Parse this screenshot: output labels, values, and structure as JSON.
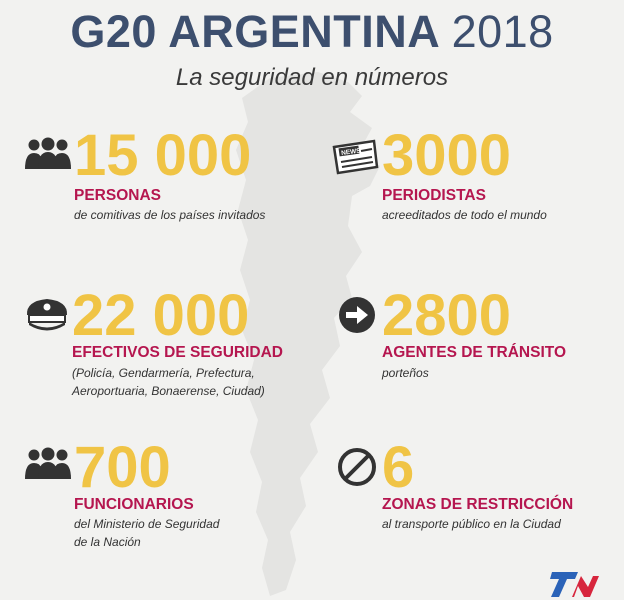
{
  "header": {
    "title_main": "G20 ARGENTINA",
    "title_year": "2018",
    "subtitle": "La seguridad en números"
  },
  "stats": [
    {
      "icon": "people-icon",
      "number": "15 000",
      "label": "PERSONAS",
      "desc": [
        "de comitivas de los países invitados"
      ]
    },
    {
      "icon": "newspaper-icon",
      "number": "3000",
      "label": "PERIODISTAS",
      "desc": [
        "acreeditados de todo el mundo"
      ]
    },
    {
      "icon": "police-cap-icon",
      "number": "22 000",
      "label": "EFECTIVOS DE SEGURIDAD",
      "desc": [
        "(Policía, Gendarmería, Prefectura,",
        "Aeroportuaria, Bonaerense, Ciudad)"
      ]
    },
    {
      "icon": "arrow-right-circle-icon",
      "number": "2800",
      "label": "AGENTES DE TRÁNSITO",
      "desc": [
        "porteños"
      ]
    },
    {
      "icon": "people-icon",
      "number": "700",
      "label": "FUNCIONARIOS",
      "desc": [
        "del Ministerio de Seguridad",
        "de la Nación"
      ]
    },
    {
      "icon": "prohibited-icon",
      "number": "6",
      "label": "ZONAS DE RESTRICCIÓN",
      "desc": [
        "al transporte público en la Ciudad"
      ]
    }
  ],
  "logo": {
    "text": "TN",
    "colors": [
      "#2b63b8",
      "#d7263d"
    ]
  },
  "colors": {
    "title": "#3d4f6e",
    "number": "#f0c445",
    "label": "#b5164f",
    "background": "#f2f2f0"
  }
}
